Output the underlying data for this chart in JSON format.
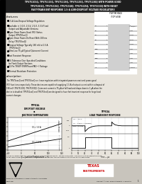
{
  "header_text": "TPS75101Q, TPS75115Q, TPS75118Q, TPS75125Q, TPS75130Q WITH POWER GOOD\n  TPS75301Q, TPS75315Q, TPS75318Q, TPS75325Q, TPS75330Q WITH RESET\nFAST-TRANSIENT-RESPONSE 1.5-A LOW-DROPOUT VOLTAGE REGULATORS",
  "part_number_label": "PWP PACKAGE\n(TOP VIEW)",
  "features_title": "features",
  "features": [
    "1.5-A Low-Dropout Voltage Regulation",
    "Available in 1.0-V, 1.5-V, 2.5-V, 3.3-V Fixed\n  Output and Adjustable Versions",
    "Open Drain Power-Good (PG) Status\n  Output (TPS751xxQ)",
    "Open Drain Power-On Reset With 100 ms\n  Delay (TPS753xxQ)",
    "Dropout Voltage Typically 180 mV at 1.5 A\n  (TPS753xxQ)",
    "Ultra Low 75 μA Typical Quiescent Current",
    "Fast Transient Response",
    "1% Tolerance Over Specified Conditions\n  for Fixed-Output Versions",
    "20-Pin TSSOP (PWP/PowerPAD™) Package",
    "Thermal Shutdown Protection"
  ],
  "description_title": "description",
  "description_text": "The TPS75xxxQ and TPS753xxQ are linear regulators with integrated power-on reset and power-good\n(PG) functions respectively. These devices are capable of supplying 1.5 A of output current within a dropout of\n180 mV (TPS75130Q, TPS75330Q). Quiescent current is 75 μA at full load and drops down to 1 μA when the\ndevice is disabled. TPS751xxQ and TPS753xxQ are designed to have fast transient response for large load\ncurrent changes.",
  "graph1_title": "TYPICAL\nDROPOUT VOLTAGE",
  "graph1_sub": "vs\nJUNCTION TEMPERATURE",
  "graph1_ylabel": "Dropout Voltage — mV",
  "graph1_xlabel": "TJ — Junction Temperature — °C",
  "graph1_ylim": [
    0,
    350
  ],
  "graph1_xlim": [
    -50,
    150
  ],
  "graph1_yticks": [
    0,
    50,
    100,
    150,
    200,
    250,
    300,
    350
  ],
  "graph1_xticks": [
    -50,
    0,
    50,
    100,
    150
  ],
  "graph1_line1_label": "IO = 1.5 A",
  "graph1_line2_label": "IO = 0.4 A",
  "graph2_title": "TYPICAL\nLOAD TRANSIENT RESPONSE",
  "graph2_ylabel_top": "Output Voltage\nChange — mV",
  "graph2_ylabel_bot": "Output Current — A",
  "graph2_xlabel": "Time — μs",
  "graph2_xlim": [
    0,
    100
  ],
  "graph2_legend": [
    "VO = 3.3 V",
    "IO = 1.5/0.1 A (Pulsed)",
    "Typ = 0.1 μs"
  ],
  "pin_labels_left": [
    "PG",
    "NC",
    "NC",
    "NC",
    "NC",
    "GND",
    "GND",
    "GND",
    "IN",
    "IN"
  ],
  "pin_labels_right": [
    "RESET",
    "NC",
    "NC",
    "NC",
    "NC",
    "OUT",
    "OUT",
    "OUT",
    "EN",
    "ADJ/NC"
  ],
  "disclaimer": "Please be aware that an important notice concerning availability, standard warranty, and use in critical applications of\nTexas Instruments semiconductor products and disclaimers thereto appears at the end of this data sheet.",
  "trademark": "PowerPAD is a trademark of Texas Instruments Incorporated.",
  "copyright": "Copyright © 2004, Texas Instruments Incorporated",
  "bg_color": "#e8e4dc",
  "header_bg": "#1e1e1e",
  "black": "#000000",
  "white": "#ffffff",
  "gray": "#888888"
}
